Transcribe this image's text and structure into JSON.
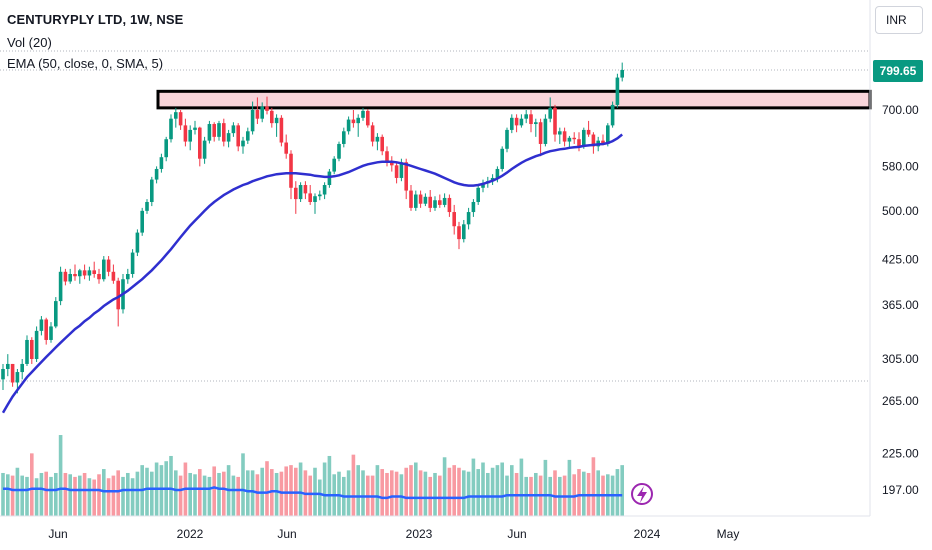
{
  "header": {
    "symbol_line": "CENTURYPLY LTD, 1W, NSE",
    "volume_line": "Vol (20)",
    "ema_line": "EMA (50, close, 0, SMA, 5)"
  },
  "currency_button": "INR",
  "last_price_label": "799.65",
  "colors": {
    "up": "#089981",
    "down": "#f23645",
    "ema": "#2f2fcf",
    "volume_ma": "#2962ff",
    "zone_fill": "#f8d5da",
    "zone_border": "#000000",
    "grid": "#b2b5be"
  },
  "chart_data": {
    "type": "candlestick",
    "title": "CENTURYPLY LTD, 1W, NSE",
    "price_axis": {
      "scale": "log",
      "ticks": [
        "700.00",
        "580.00",
        "500.00",
        "425.00",
        "365.00",
        "305.00"
      ],
      "currency": "INR"
    },
    "volume_axis": {
      "ticks": [
        "265.00",
        "225.00",
        "197.00"
      ]
    },
    "time_axis": {
      "labels": [
        "Jun",
        "2022",
        "Jun",
        "2023",
        "Jun",
        "2024",
        "May"
      ]
    },
    "resistance_zone": {
      "low": 705,
      "high": 745
    },
    "last_price": 799.65,
    "candles": [
      [
        285,
        300,
        275,
        295
      ],
      [
        295,
        310,
        288,
        300
      ],
      [
        300,
        300,
        278,
        282
      ],
      [
        282,
        295,
        272,
        292
      ],
      [
        292,
        305,
        285,
        300
      ],
      [
        300,
        330,
        298,
        325
      ],
      [
        325,
        328,
        300,
        305
      ],
      [
        305,
        340,
        302,
        335
      ],
      [
        335,
        352,
        330,
        348
      ],
      [
        348,
        350,
        320,
        325
      ],
      [
        325,
        345,
        322,
        340
      ],
      [
        340,
        375,
        338,
        370
      ],
      [
        370,
        415,
        365,
        408
      ],
      [
        408,
        412,
        390,
        395
      ],
      [
        395,
        412,
        392,
        405
      ],
      [
        405,
        418,
        396,
        402
      ],
      [
        402,
        412,
        392,
        410
      ],
      [
        410,
        418,
        398,
        403
      ],
      [
        403,
        415,
        396,
        410
      ],
      [
        410,
        422,
        400,
        405
      ],
      [
        405,
        412,
        392,
        398
      ],
      [
        398,
        430,
        395,
        425
      ],
      [
        425,
        430,
        402,
        408
      ],
      [
        408,
        418,
        392,
        396
      ],
      [
        396,
        400,
        340,
        360
      ],
      [
        360,
        405,
        355,
        398
      ],
      [
        398,
        412,
        392,
        405
      ],
      [
        405,
        440,
        400,
        435
      ],
      [
        435,
        470,
        430,
        465
      ],
      [
        465,
        505,
        460,
        500
      ],
      [
        500,
        520,
        495,
        515
      ],
      [
        515,
        560,
        508,
        555
      ],
      [
        555,
        580,
        548,
        575
      ],
      [
        575,
        605,
        568,
        598
      ],
      [
        598,
        640,
        590,
        635
      ],
      [
        635,
        690,
        628,
        680
      ],
      [
        680,
        705,
        660,
        695
      ],
      [
        695,
        700,
        655,
        665
      ],
      [
        665,
        680,
        620,
        630
      ],
      [
        630,
        665,
        612,
        655
      ],
      [
        655,
        675,
        645,
        660
      ],
      [
        660,
        662,
        580,
        595
      ],
      [
        595,
        640,
        585,
        632
      ],
      [
        632,
        675,
        626,
        668
      ],
      [
        668,
        672,
        630,
        640
      ],
      [
        640,
        675,
        632,
        670
      ],
      [
        670,
        680,
        620,
        630
      ],
      [
        630,
        655,
        618,
        648
      ],
      [
        648,
        672,
        640,
        665
      ],
      [
        665,
        670,
        610,
        620
      ],
      [
        620,
        640,
        605,
        632
      ],
      [
        632,
        660,
        625,
        652
      ],
      [
        652,
        720,
        645,
        700
      ],
      [
        700,
        730,
        668,
        680
      ],
      [
        680,
        718,
        672,
        708
      ],
      [
        708,
        732,
        690,
        698
      ],
      [
        698,
        705,
        660,
        670
      ],
      [
        670,
        690,
        640,
        682
      ],
      [
        682,
        688,
        620,
        628
      ],
      [
        628,
        645,
        595,
        605
      ],
      [
        605,
        612,
        520,
        540
      ],
      [
        540,
        552,
        495,
        520
      ],
      [
        520,
        550,
        515,
        545
      ],
      [
        545,
        552,
        520,
        530
      ],
      [
        530,
        545,
        510,
        515
      ],
      [
        515,
        530,
        495,
        525
      ],
      [
        525,
        535,
        518,
        528
      ],
      [
        528,
        550,
        520,
        545
      ],
      [
        545,
        575,
        540,
        570
      ],
      [
        570,
        600,
        565,
        595
      ],
      [
        595,
        630,
        590,
        625
      ],
      [
        625,
        660,
        618,
        652
      ],
      [
        652,
        685,
        645,
        678
      ],
      [
        678,
        700,
        660,
        670
      ],
      [
        670,
        690,
        640,
        682
      ],
      [
        682,
        705,
        675,
        698
      ],
      [
        698,
        702,
        660,
        665
      ],
      [
        665,
        672,
        620,
        630
      ],
      [
        630,
        648,
        612,
        640
      ],
      [
        640,
        645,
        602,
        610
      ],
      [
        610,
        620,
        580,
        590
      ],
      [
        590,
        600,
        570,
        582
      ],
      [
        582,
        586,
        548,
        558
      ],
      [
        558,
        595,
        552,
        588
      ],
      [
        588,
        595,
        520,
        535
      ],
      [
        535,
        545,
        500,
        505
      ],
      [
        505,
        535,
        500,
        528
      ],
      [
        528,
        535,
        505,
        512
      ],
      [
        512,
        530,
        508,
        524
      ],
      [
        524,
        536,
        498,
        505
      ],
      [
        505,
        525,
        500,
        518
      ],
      [
        518,
        528,
        505,
        510
      ],
      [
        510,
        530,
        506,
        522
      ],
      [
        522,
        528,
        490,
        498
      ],
      [
        498,
        510,
        462,
        475
      ],
      [
        475,
        482,
        440,
        455
      ],
      [
        455,
        485,
        450,
        478
      ],
      [
        478,
        505,
        470,
        498
      ],
      [
        498,
        520,
        490,
        515
      ],
      [
        515,
        545,
        510,
        540
      ],
      [
        540,
        555,
        532,
        548
      ],
      [
        548,
        560,
        540,
        552
      ],
      [
        552,
        565,
        545,
        558
      ],
      [
        558,
        580,
        550,
        575
      ],
      [
        575,
        620,
        570,
        615
      ],
      [
        615,
        660,
        608,
        655
      ],
      [
        655,
        690,
        648,
        682
      ],
      [
        682,
        690,
        650,
        665
      ],
      [
        665,
        690,
        660,
        680
      ],
      [
        680,
        700,
        670,
        690
      ],
      [
        690,
        700,
        650,
        668
      ],
      [
        668,
        680,
        640,
        672
      ],
      [
        672,
        680,
        600,
        625
      ],
      [
        625,
        690,
        620,
        680
      ],
      [
        680,
        730,
        672,
        705
      ],
      [
        705,
        712,
        630,
        645
      ],
      [
        645,
        660,
        625,
        652
      ],
      [
        652,
        660,
        620,
        630
      ],
      [
        630,
        642,
        615,
        638
      ],
      [
        638,
        650,
        625,
        635
      ],
      [
        635,
        650,
        610,
        620
      ],
      [
        620,
        660,
        615,
        655
      ],
      [
        655,
        675,
        640,
        645
      ],
      [
        645,
        650,
        605,
        620
      ],
      [
        620,
        640,
        610,
        632
      ],
      [
        632,
        645,
        622,
        625
      ],
      [
        625,
        670,
        620,
        665
      ],
      [
        665,
        720,
        660,
        712
      ],
      [
        712,
        790,
        705,
        780
      ],
      [
        780,
        820,
        770,
        800
      ]
    ],
    "ema_50": [
      255,
      262,
      269,
      275,
      281,
      287,
      292,
      297,
      302,
      307,
      312,
      317,
      322,
      327,
      332,
      337,
      341,
      346,
      350,
      355,
      359,
      364,
      368,
      372,
      375,
      379,
      383,
      388,
      393,
      398,
      404,
      410,
      417,
      424,
      432,
      440,
      449,
      458,
      467,
      476,
      484,
      492,
      500,
      508,
      515,
      521,
      527,
      532,
      537,
      541,
      545,
      548,
      552,
      555,
      558,
      561,
      563,
      565,
      566,
      567,
      567,
      567,
      566,
      565,
      564,
      562,
      561,
      560,
      560,
      561,
      563,
      566,
      569,
      573,
      577,
      581,
      584,
      586,
      588,
      589,
      589,
      589,
      588,
      586,
      584,
      581,
      578,
      575,
      572,
      569,
      566,
      562,
      558,
      554,
      550,
      547,
      545,
      544,
      544,
      545,
      547,
      550,
      553,
      557,
      562,
      568,
      575,
      581,
      587,
      592,
      596,
      600,
      603,
      607,
      610,
      612,
      614,
      615,
      617,
      618,
      619,
      621,
      622,
      623,
      624,
      625,
      627,
      631,
      637,
      645
    ],
    "volume": [
      210,
      209,
      208,
      214,
      208,
      207,
      225,
      206,
      210,
      211,
      207,
      210,
      239,
      210,
      209,
      207,
      208,
      210,
      206,
      205,
      209,
      213,
      206,
      208,
      212,
      207,
      210,
      206,
      211,
      216,
      214,
      211,
      218,
      216,
      219,
      223,
      212,
      208,
      218,
      210,
      209,
      213,
      208,
      207,
      215,
      210,
      211,
      216,
      208,
      207,
      225,
      212,
      212,
      209,
      214,
      219,
      213,
      210,
      211,
      215,
      216,
      214,
      218,
      212,
      208,
      214,
      205,
      218,
      223,
      209,
      211,
      207,
      212,
      224,
      216,
      212,
      208,
      208,
      216,
      213,
      210,
      212,
      211,
      209,
      214,
      216,
      218,
      212,
      211,
      207,
      210,
      208,
      222,
      214,
      216,
      214,
      212,
      211,
      221,
      213,
      218,
      210,
      214,
      216,
      218,
      208,
      216,
      210,
      221,
      207,
      207,
      210,
      208,
      220,
      207,
      212,
      207,
      208,
      220,
      209,
      213,
      211,
      210,
      222,
      212,
      208,
      209,
      208,
      213,
      216
    ],
    "volume_ma_20": [
      198,
      198,
      197,
      197,
      197,
      197,
      198,
      198,
      198,
      197,
      197,
      197,
      198,
      198,
      197,
      197,
      197,
      197,
      197,
      197,
      197,
      196,
      196,
      196,
      196,
      197,
      197,
      197,
      197,
      197,
      198,
      198,
      198,
      198,
      198,
      198,
      197,
      197,
      198,
      198,
      198,
      198,
      198,
      198,
      199,
      198,
      198,
      197,
      197,
      197,
      197,
      196,
      196,
      195,
      195,
      195,
      196,
      196,
      195,
      195,
      195,
      195,
      195,
      194,
      194,
      194,
      194,
      193,
      193,
      193,
      193,
      192,
      192,
      192,
      192,
      192,
      192,
      192,
      192,
      191,
      191,
      192,
      192,
      192,
      191,
      191,
      191,
      191,
      191,
      191,
      191,
      191,
      191,
      191,
      191,
      191,
      191,
      192,
      192,
      192,
      192,
      192,
      192,
      192,
      192,
      193,
      193,
      193,
      193,
      193,
      193,
      193,
      193,
      193,
      193,
      192,
      192,
      192,
      192,
      192,
      193,
      193,
      193,
      193,
      193,
      193,
      193,
      193,
      193,
      193
    ]
  }
}
